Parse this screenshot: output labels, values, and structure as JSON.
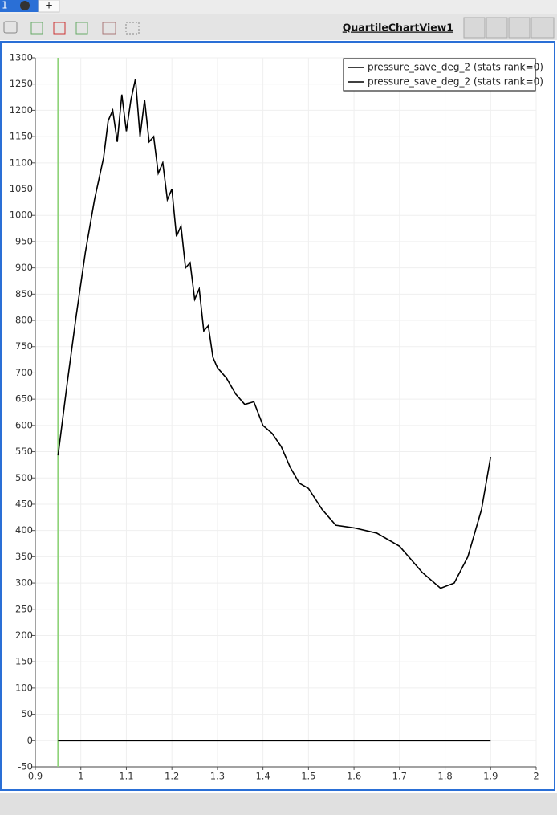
{
  "ui": {
    "tab_label": "1",
    "new_tab": "+",
    "view_title": "QuartileChartView1"
  },
  "chart_data": {
    "type": "line",
    "xlim": [
      0.9,
      2
    ],
    "xticks": [
      0.9,
      1,
      1.1,
      1.2,
      1.3,
      1.4,
      1.5,
      1.6,
      1.7,
      1.8,
      1.9,
      2
    ],
    "ylim": [
      -50,
      1300
    ],
    "yticks": [
      -50,
      0,
      50,
      100,
      150,
      200,
      250,
      300,
      350,
      400,
      450,
      500,
      550,
      600,
      650,
      700,
      750,
      800,
      850,
      900,
      950,
      1000,
      1050,
      1100,
      1150,
      1200,
      1250,
      1300
    ],
    "grid": true,
    "legend": "top-right",
    "vline": {
      "x": 0.95,
      "color": "#8fd37a"
    },
    "series": [
      {
        "name": "pressure_save_deg_2 (stats rank=0)",
        "color": "#000000",
        "x": [
          0.95,
          0.97,
          0.99,
          1.01,
          1.03,
          1.05,
          1.06,
          1.07,
          1.08,
          1.09,
          1.1,
          1.11,
          1.12,
          1.13,
          1.14,
          1.15,
          1.16,
          1.17,
          1.18,
          1.19,
          1.2,
          1.21,
          1.22,
          1.23,
          1.24,
          1.25,
          1.26,
          1.27,
          1.28,
          1.29,
          1.3,
          1.32,
          1.34,
          1.36,
          1.38,
          1.4,
          1.42,
          1.44,
          1.46,
          1.48,
          1.5,
          1.53,
          1.56,
          1.6,
          1.65,
          1.7,
          1.75,
          1.79,
          1.82,
          1.85,
          1.88,
          1.9
        ],
        "values": [
          543,
          680,
          810,
          930,
          1030,
          1110,
          1180,
          1200,
          1140,
          1230,
          1160,
          1220,
          1260,
          1150,
          1220,
          1140,
          1150,
          1080,
          1100,
          1030,
          1050,
          960,
          980,
          900,
          910,
          840,
          860,
          780,
          790,
          730,
          710,
          690,
          660,
          640,
          645,
          600,
          585,
          560,
          520,
          490,
          480,
          440,
          410,
          405,
          395,
          370,
          320,
          290,
          300,
          350,
          440,
          540
        ]
      },
      {
        "name": "pressure_save_deg_2 (stats rank=0)",
        "color": "#000000",
        "x": [
          0.95,
          1.9
        ],
        "values": [
          0,
          0
        ]
      }
    ]
  }
}
